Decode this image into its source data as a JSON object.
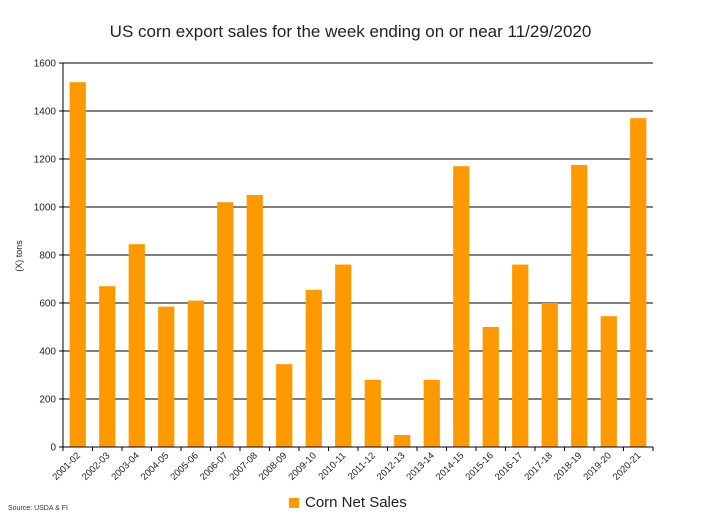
{
  "chart_data": {
    "type": "bar",
    "title": "US corn export sales for the week ending on or near 11/29/2020",
    "ylabel": "(X) tons",
    "xlabel": "",
    "ylim": [
      0,
      1600
    ],
    "yticks": [
      0,
      200,
      400,
      600,
      800,
      1000,
      1200,
      1400,
      1600
    ],
    "grid": true,
    "legend_position": "bottom",
    "categories": [
      "2001-02",
      "2002-03",
      "2003-04",
      "2004-05",
      "2005-06",
      "2006-07",
      "2007-08",
      "2008-09",
      "2009-10",
      "2010-11",
      "2011-12",
      "2012-13",
      "2013-14",
      "2014-15",
      "2015-16",
      "2016-17",
      "2017-18",
      "2018-19",
      "2019-20",
      "2020-21"
    ],
    "series": [
      {
        "name": "Corn Net Sales",
        "color": "#ff9900",
        "values": [
          1520,
          670,
          845,
          585,
          610,
          1020,
          1050,
          345,
          655,
          760,
          280,
          50,
          280,
          1170,
          500,
          760,
          600,
          1175,
          545,
          1370
        ]
      }
    ],
    "source": "Source: USDA & FI"
  }
}
